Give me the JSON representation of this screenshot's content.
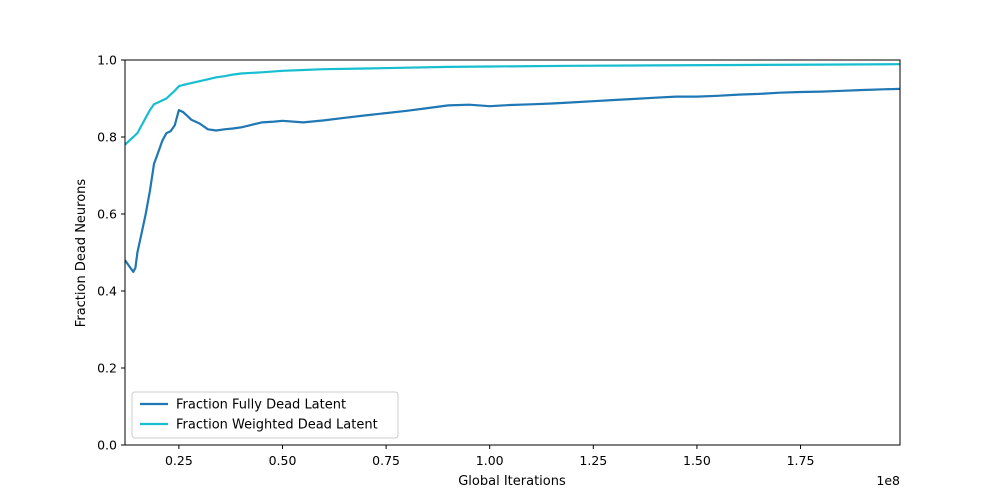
{
  "chart_data": {
    "type": "line",
    "title": "",
    "xlabel": "Global Iterations",
    "ylabel": "Fraction Dead Neurons",
    "x_offset_label": "1e8",
    "xlim": [
      0.12,
      1.99
    ],
    "ylim": [
      0.0,
      1.0
    ],
    "x_ticks": [
      0.25,
      0.5,
      0.75,
      1.0,
      1.25,
      1.5,
      1.75
    ],
    "x_tick_labels": [
      "0.25",
      "0.50",
      "0.75",
      "1.00",
      "1.25",
      "1.50",
      "1.75"
    ],
    "y_ticks": [
      0.0,
      0.2,
      0.4,
      0.6,
      0.8,
      1.0
    ],
    "y_tick_labels": [
      "0.0",
      "0.2",
      "0.4",
      "0.6",
      "0.8",
      "1.0"
    ],
    "grid": false,
    "legend_position": "lower-left",
    "series": [
      {
        "name": "Fraction Fully Dead Latent",
        "color": "#1f77b4",
        "x": [
          0.12,
          0.13,
          0.14,
          0.145,
          0.15,
          0.16,
          0.17,
          0.18,
          0.19,
          0.2,
          0.21,
          0.22,
          0.23,
          0.24,
          0.25,
          0.26,
          0.27,
          0.28,
          0.3,
          0.32,
          0.34,
          0.36,
          0.38,
          0.4,
          0.42,
          0.45,
          0.48,
          0.5,
          0.55,
          0.6,
          0.65,
          0.7,
          0.75,
          0.8,
          0.85,
          0.9,
          0.95,
          1.0,
          1.05,
          1.1,
          1.15,
          1.2,
          1.25,
          1.3,
          1.35,
          1.4,
          1.45,
          1.5,
          1.55,
          1.6,
          1.65,
          1.7,
          1.75,
          1.8,
          1.85,
          1.9,
          1.95,
          1.99
        ],
        "y": [
          0.48,
          0.465,
          0.45,
          0.46,
          0.5,
          0.55,
          0.6,
          0.66,
          0.73,
          0.76,
          0.79,
          0.81,
          0.815,
          0.83,
          0.87,
          0.865,
          0.855,
          0.845,
          0.835,
          0.82,
          0.817,
          0.82,
          0.822,
          0.825,
          0.83,
          0.838,
          0.84,
          0.842,
          0.838,
          0.843,
          0.85,
          0.856,
          0.862,
          0.868,
          0.875,
          0.882,
          0.884,
          0.88,
          0.883,
          0.885,
          0.887,
          0.89,
          0.893,
          0.896,
          0.899,
          0.902,
          0.905,
          0.905,
          0.907,
          0.91,
          0.912,
          0.915,
          0.917,
          0.918,
          0.92,
          0.922,
          0.924,
          0.925
        ]
      },
      {
        "name": "Fraction Weighted Dead Latent",
        "color": "#17becf",
        "x": [
          0.12,
          0.13,
          0.14,
          0.15,
          0.16,
          0.17,
          0.18,
          0.19,
          0.2,
          0.21,
          0.22,
          0.23,
          0.24,
          0.25,
          0.26,
          0.28,
          0.3,
          0.32,
          0.34,
          0.36,
          0.38,
          0.4,
          0.45,
          0.5,
          0.55,
          0.6,
          0.7,
          0.8,
          0.9,
          1.0,
          1.2,
          1.4,
          1.6,
          1.8,
          1.99
        ],
        "y": [
          0.78,
          0.79,
          0.8,
          0.81,
          0.83,
          0.85,
          0.87,
          0.885,
          0.89,
          0.895,
          0.9,
          0.91,
          0.92,
          0.932,
          0.935,
          0.94,
          0.945,
          0.95,
          0.955,
          0.958,
          0.962,
          0.965,
          0.968,
          0.972,
          0.974,
          0.976,
          0.978,
          0.98,
          0.982,
          0.983,
          0.985,
          0.986,
          0.987,
          0.988,
          0.989
        ]
      }
    ]
  }
}
